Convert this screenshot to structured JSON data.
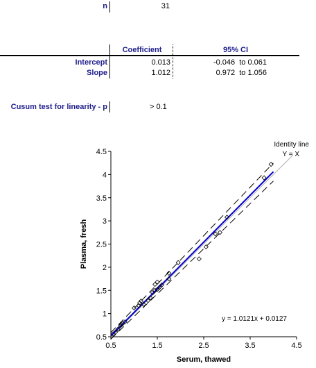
{
  "n_row": {
    "label": "n",
    "value": "31"
  },
  "coef_table": {
    "headers": {
      "coef": "Coefficient",
      "ci": "95% CI"
    },
    "rows": [
      {
        "label": "Intercept",
        "coef": "0.013",
        "ci": "-0.046  to 0.061"
      },
      {
        "label": "Slope",
        "coef": "1.012",
        "ci": "0.972  to 1.056"
      }
    ]
  },
  "cusum": {
    "label": "Cusum test for linearity - p",
    "value": "> 0.1"
  },
  "colors": {
    "label_blue": "#1f1f8c",
    "regression_line": "#0000cc",
    "identity_line": "#b0b0b0"
  },
  "chart_data": {
    "type": "scatter",
    "title": "",
    "xlabel": "Serum, thawed",
    "ylabel": "Plasma, fresh",
    "xlim": [
      0.5,
      4.5
    ],
    "ylim": [
      0.5,
      4.5
    ],
    "xticks": [
      "0.5",
      "1.5",
      "2.5",
      "3.5",
      "4.5"
    ],
    "yticks": [
      "0.5",
      "1",
      "1.5",
      "2",
      "2.5",
      "3",
      "3.5",
      "4",
      "4.5"
    ],
    "identity_label_1": "Identity line",
    "identity_label_2": "Y = X",
    "equation": "y = 1.0121x + 0.0127",
    "regression": {
      "slope": 1.0121,
      "intercept": 0.0127
    },
    "ci_band": [
      {
        "x": 0.5,
        "lower": 0.45,
        "upper": 0.59
      },
      {
        "x": 4.0,
        "lower": 3.86,
        "upper": 4.25
      }
    ],
    "points": [
      [
        0.55,
        0.56
      ],
      [
        0.6,
        0.6
      ],
      [
        0.65,
        0.66
      ],
      [
        0.7,
        0.73
      ],
      [
        0.72,
        0.76
      ],
      [
        0.75,
        0.78
      ],
      [
        0.8,
        0.82
      ],
      [
        1.0,
        1.12
      ],
      [
        1.1,
        1.17
      ],
      [
        1.12,
        1.23
      ],
      [
        1.15,
        1.27
      ],
      [
        1.2,
        1.2
      ],
      [
        1.3,
        1.28
      ],
      [
        1.35,
        1.34
      ],
      [
        1.4,
        1.45
      ],
      [
        1.45,
        1.63
      ],
      [
        1.5,
        1.52
      ],
      [
        1.5,
        1.68
      ],
      [
        1.55,
        1.57
      ],
      [
        1.6,
        1.62
      ],
      [
        1.75,
        1.75
      ],
      [
        1.75,
        1.87
      ],
      [
        1.95,
        2.1
      ],
      [
        2.4,
        2.18
      ],
      [
        2.55,
        2.44
      ],
      [
        2.75,
        2.72
      ],
      [
        2.85,
        2.75
      ],
      [
        3.0,
        3.08
      ],
      [
        3.8,
        3.93
      ],
      [
        3.95,
        4.22
      ],
      [
        1.45,
        1.5
      ]
    ]
  }
}
